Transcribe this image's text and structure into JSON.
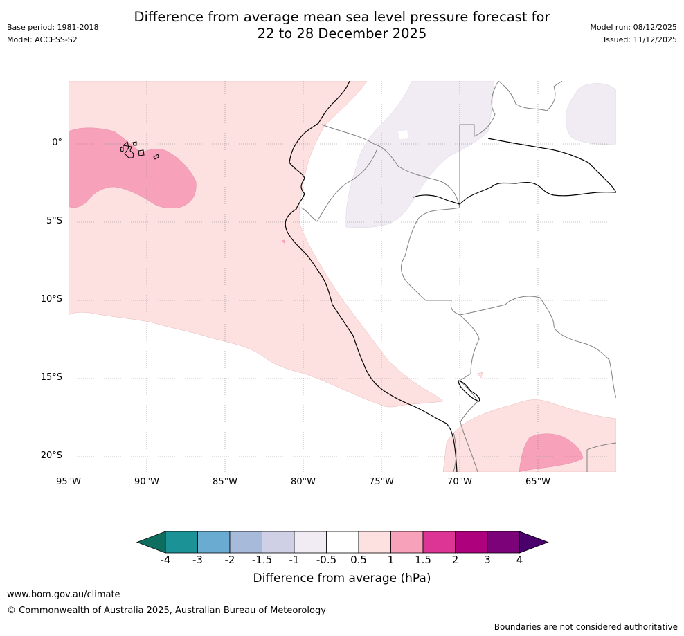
{
  "header": {
    "title_line1": "Difference from average mean sea level pressure forecast for",
    "title_line2": "22 to 28 December 2025",
    "base_period": "Base period: 1981-2018",
    "model": "Model: ACCESS-S2",
    "model_run": "Model run: 08/12/2025",
    "issued": "Issued: 11/12/2025"
  },
  "map": {
    "lat_labels": [
      "0°",
      "5°S",
      "10°S",
      "15°S",
      "20°S"
    ],
    "lon_labels": [
      "95°W",
      "90°W",
      "85°W",
      "80°W",
      "75°W",
      "70°W",
      "65°W"
    ],
    "colors": {
      "anom_0_5_to_1": "#fde0e0",
      "anom_1_to_1_5": "#f7a1bb",
      "anom_neg_0_5_to_neg_1": "#f1ebf4",
      "coastline": "#000000",
      "border": "#808080",
      "gridline": "#888888"
    }
  },
  "colorbar": {
    "label": "Difference from average (hPa)",
    "ticks": [
      "-4",
      "-3",
      "-2",
      "-1.5",
      "-1",
      "-0.5",
      "0.5",
      "1",
      "1.5",
      "2",
      "3",
      "4"
    ],
    "colors": [
      "#0d6e60",
      "#1a9296",
      "#6aabd2",
      "#a7bad9",
      "#cfd0e6",
      "#f1ebf4",
      "#ffffff",
      "#fde0e0",
      "#f7a1bb",
      "#dc3596",
      "#ad017e",
      "#7b0278",
      "#49006a"
    ]
  },
  "footer": {
    "url": "www.bom.gov.au/climate",
    "copyright": "© Commonwealth of Australia 2025, Australian Bureau of Meteorology",
    "disclaimer": "Boundaries are not considered authoritative"
  }
}
